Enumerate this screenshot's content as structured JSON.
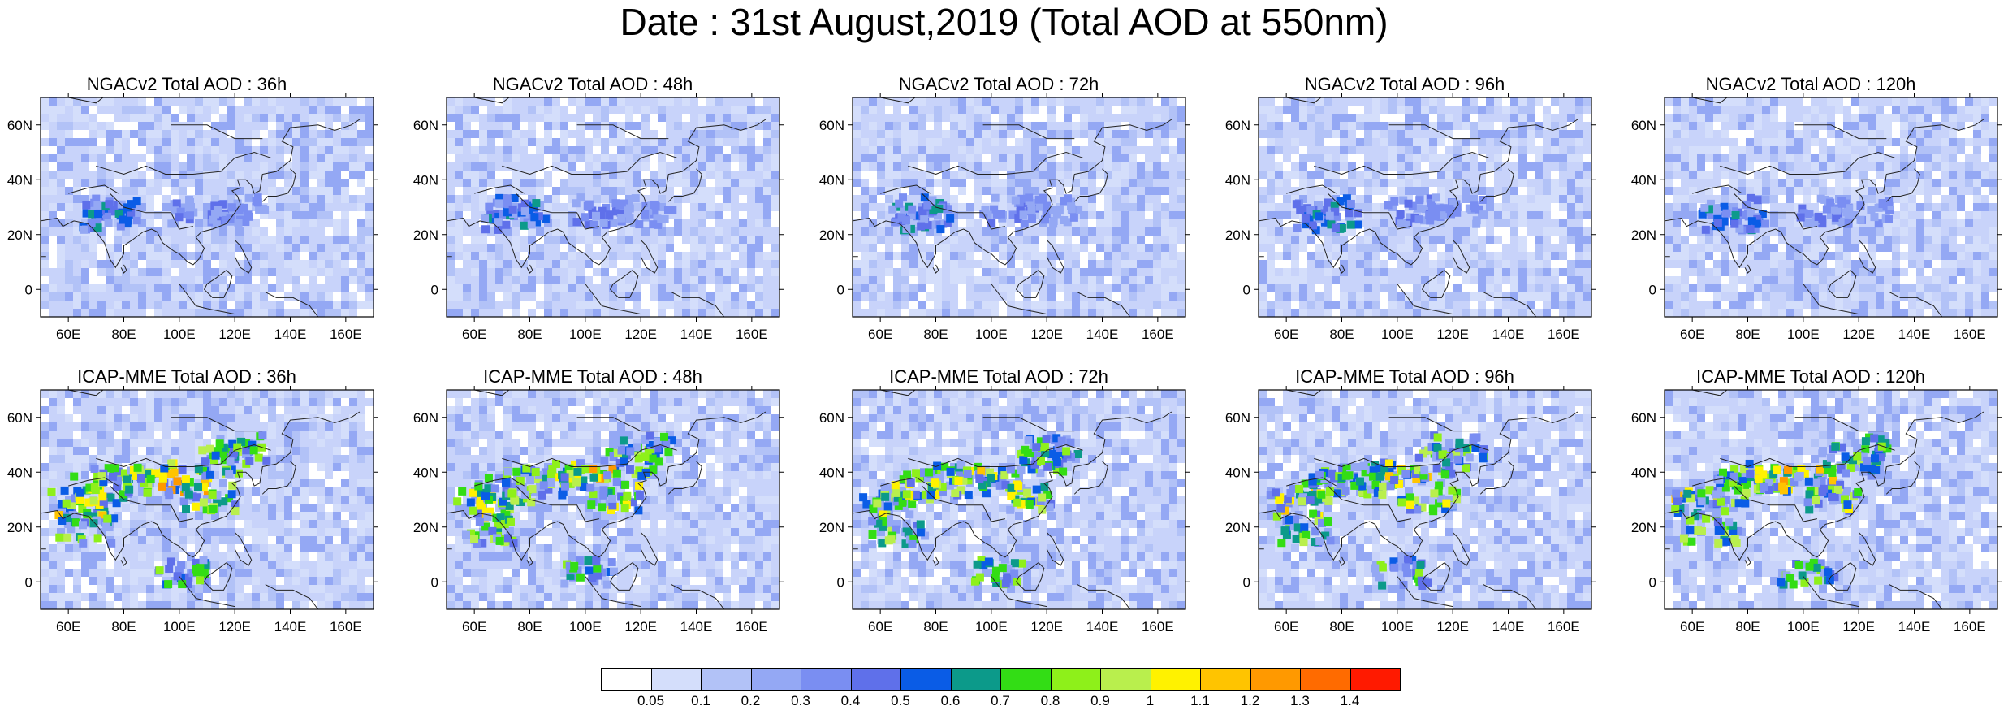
{
  "title": "Date : 31st August,2019 (Total AOD at 550nm)",
  "panels": [
    {
      "title": "NGACv2 Total AOD : 36h",
      "model": "NGACv2",
      "lead": "36h"
    },
    {
      "title": "NGACv2 Total AOD : 48h",
      "model": "NGACv2",
      "lead": "48h"
    },
    {
      "title": "NGACv2 Total AOD : 72h",
      "model": "NGACv2",
      "lead": "72h"
    },
    {
      "title": "NGACv2 Total AOD : 96h",
      "model": "NGACv2",
      "lead": "96h"
    },
    {
      "title": "NGACv2 Total AOD : 120h",
      "model": "NGACv2",
      "lead": "120h"
    },
    {
      "title": "ICAP-MME Total AOD : 36h",
      "model": "ICAP-MME",
      "lead": "36h"
    },
    {
      "title": "ICAP-MME Total AOD : 48h",
      "model": "ICAP-MME",
      "lead": "48h"
    },
    {
      "title": "ICAP-MME Total AOD : 72h",
      "model": "ICAP-MME",
      "lead": "72h"
    },
    {
      "title": "ICAP-MME Total AOD : 96h",
      "model": "ICAP-MME",
      "lead": "96h"
    },
    {
      "title": "ICAP-MME Total AOD : 120h",
      "model": "ICAP-MME",
      "lead": "120h"
    }
  ],
  "map": {
    "lon_ticks": [
      "60E",
      "80E",
      "100E",
      "120E",
      "140E",
      "160E"
    ],
    "lat_ticks": [
      "60N",
      "40N",
      "20N",
      "0"
    ],
    "lon_range": [
      50,
      170
    ],
    "lat_range": [
      -10,
      70
    ]
  },
  "colorbar": {
    "labels": [
      "0.05",
      "0.1",
      "0.2",
      "0.3",
      "0.4",
      "0.5",
      "0.6",
      "0.7",
      "0.8",
      "0.9",
      "1",
      "1.1",
      "1.2",
      "1.3",
      "1.4"
    ],
    "colors": [
      "#ffffff",
      "#d4defb",
      "#b2c2f7",
      "#94a8f4",
      "#7a8ef2",
      "#5f70ea",
      "#0a5ce6",
      "#0c9a8a",
      "#33dd15",
      "#8ef01a",
      "#b9ef4d",
      "#fff200",
      "#ffc400",
      "#ff9900",
      "#ff6b00",
      "#ff1a00"
    ]
  },
  "base_color": "#c8d3fa",
  "coast_color": "#222222"
}
